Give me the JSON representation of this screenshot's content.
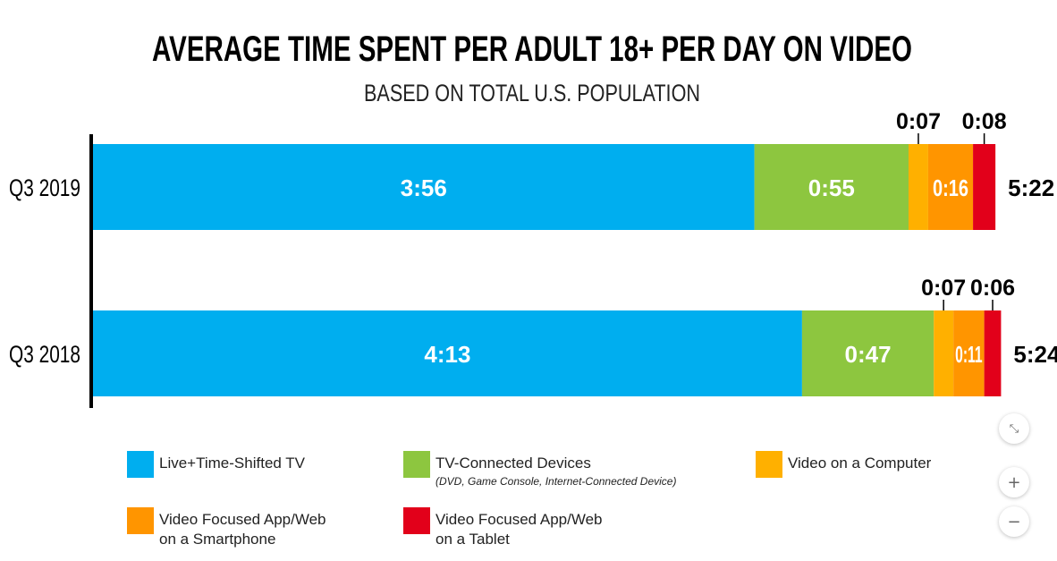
{
  "chart_data": {
    "type": "bar",
    "orientation": "horizontal",
    "stacked": true,
    "title": "AVERAGE TIME SPENT PER ADULT 18+ PER DAY ON VIDEO",
    "subtitle": "BASED ON TOTAL U.S. POPULATION",
    "units": "hours:minutes",
    "categories": [
      "Q3 2019",
      "Q3 2018"
    ],
    "totals": [
      "5:22",
      "5:24"
    ],
    "series": [
      {
        "name": "Live+Time-Shifted TV",
        "color": "#00aeef",
        "values": [
          236,
          253
        ],
        "labels": [
          "3:56",
          "4:13"
        ]
      },
      {
        "name": "TV-Connected Devices",
        "note": "(DVD, Game Console, Internet-Connected Device)",
        "color": "#8dc63f",
        "values": [
          55,
          47
        ],
        "labels": [
          "0:55",
          "0:47"
        ]
      },
      {
        "name": "Video on a Computer",
        "color": "#ffb000",
        "values": [
          7,
          7
        ],
        "labels": [
          "0:07",
          "0:07"
        ]
      },
      {
        "name": "Video Focused App/Web on a Smartphone",
        "color": "#ff9500",
        "values": [
          16,
          11
        ],
        "labels": [
          "0:16",
          "0:11"
        ]
      },
      {
        "name": "Video Focused App/Web on a Tablet",
        "color": "#e2001a",
        "values": [
          8,
          6
        ],
        "labels": [
          "0:08",
          "0:06"
        ]
      }
    ],
    "grid": false,
    "legend_position": "bottom"
  },
  "controls": {
    "collapse_icon": "collapse-icon",
    "zoom_in_label": "+",
    "zoom_out_label": "−"
  },
  "legend": {
    "items": [
      {
        "label": "Live+Time-Shifted TV"
      },
      {
        "label": "TV-Connected Devices",
        "note": "(DVD, Game Console, Internet-Connected Device)"
      },
      {
        "label": "Video on a Computer"
      },
      {
        "label": "Video Focused App/Web\non a Smartphone"
      },
      {
        "label": "Video Focused App/Web\non a Tablet"
      }
    ]
  }
}
